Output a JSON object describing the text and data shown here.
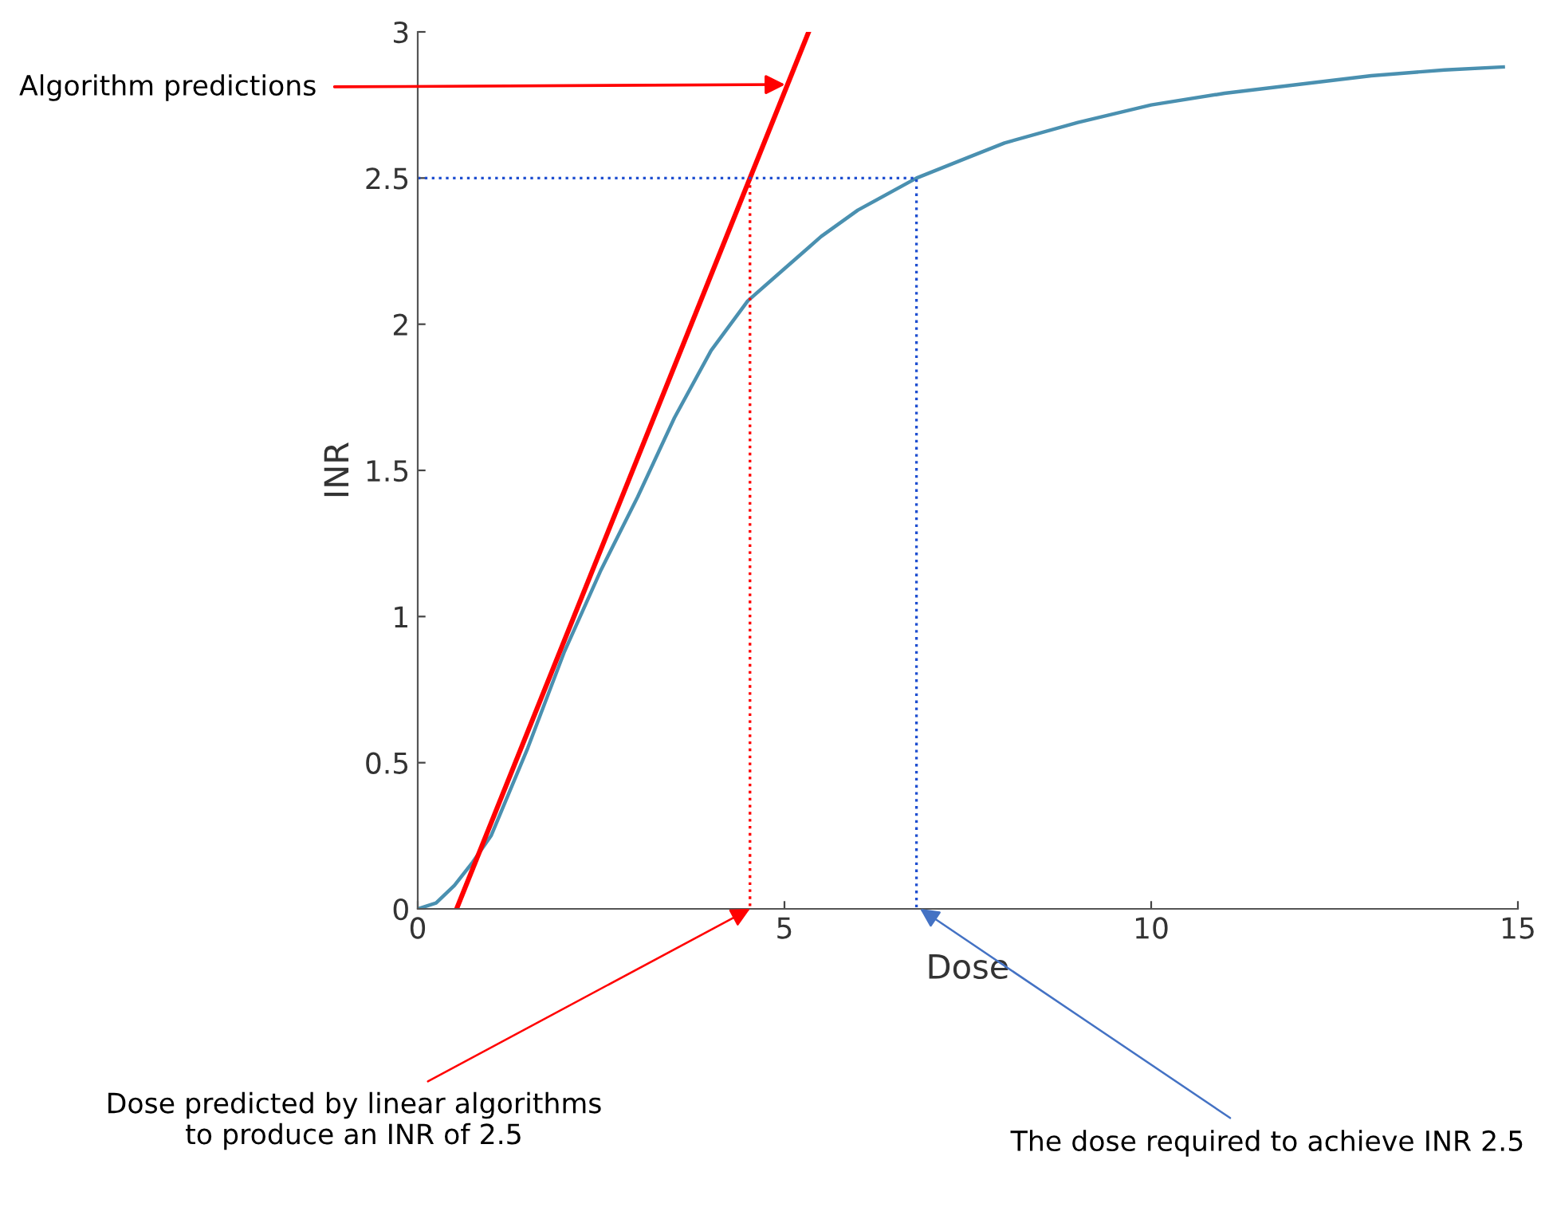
{
  "chart_data": {
    "type": "line",
    "xlabel": "Dose",
    "ylabel": "INR",
    "xlim": [
      0,
      15
    ],
    "ylim": [
      0,
      3
    ],
    "xticks": [
      0,
      5,
      10,
      15
    ],
    "yticks": [
      0,
      0.5,
      1,
      1.5,
      2,
      2.5,
      3
    ],
    "grid": false,
    "legend": false,
    "series": [
      {
        "color": "#4a90b0",
        "line_style": "solid",
        "x": [
          0,
          0.25,
          0.5,
          0.75,
          1,
          1.5,
          2,
          2.5,
          3,
          3.5,
          4,
          4.5,
          5,
          5.5,
          6,
          6.8,
          7.5,
          8,
          9,
          10,
          11,
          12,
          13,
          14,
          14.8
        ],
        "values": [
          0,
          0.02,
          0.08,
          0.16,
          0.25,
          0.55,
          0.88,
          1.16,
          1.41,
          1.68,
          1.91,
          2.08,
          2.19,
          2.3,
          2.39,
          2.5,
          2.57,
          2.62,
          2.69,
          2.75,
          2.79,
          2.82,
          2.85,
          2.87,
          2.88
        ]
      },
      {
        "color": "#ff0000",
        "line_style": "solid",
        "x": [
          0.53,
          5.33
        ],
        "values": [
          0,
          3
        ]
      },
      {
        "color": "#ff0000",
        "line_style": "dotted",
        "x": [
          4.53,
          4.53
        ],
        "values": [
          2.5,
          0
        ]
      },
      {
        "color": "#1f4fd0",
        "line_style": "dotted",
        "x": [
          0,
          6.8,
          6.8
        ],
        "values": [
          2.5,
          2.5,
          0
        ]
      }
    ],
    "annotations": [
      {
        "text": "Algorithm predictions",
        "x": 5.01,
        "y": 2.82
      },
      {
        "text": "Dose predicted by linear algorithms\nto produce an INR of 2.5",
        "x": 4.53,
        "y": 0
      },
      {
        "text": "The dose required to achieve INR 2.5",
        "x": 6.85,
        "y": 0
      }
    ]
  }
}
